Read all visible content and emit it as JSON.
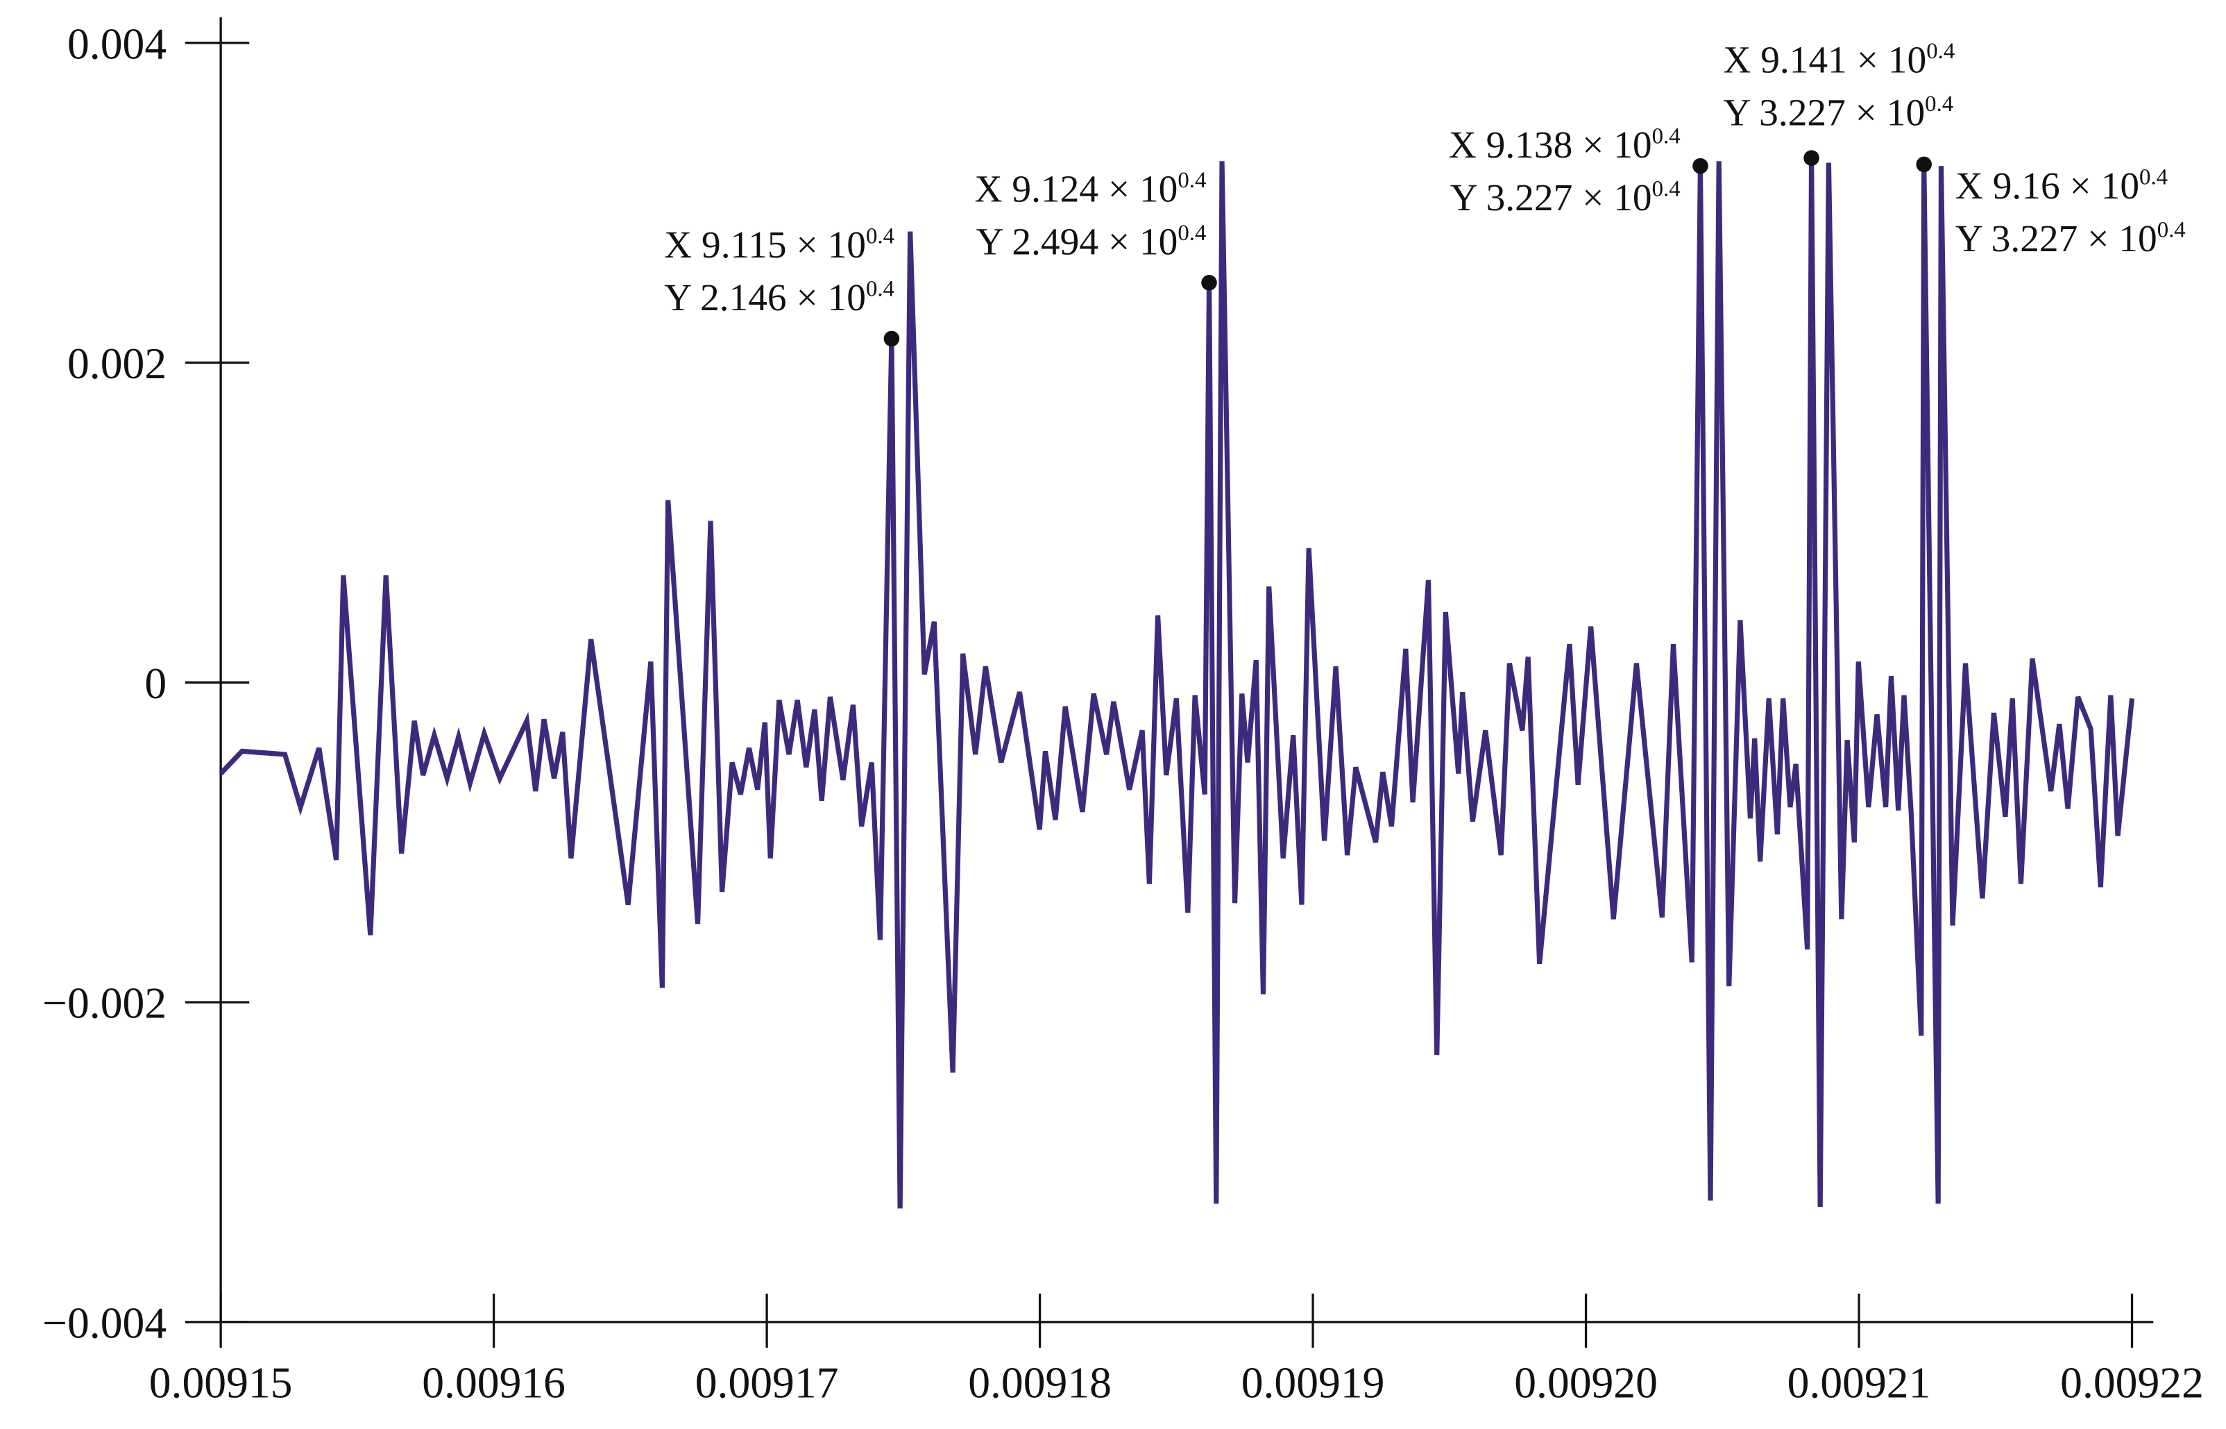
{
  "chart_data": {
    "type": "line",
    "color": "#3e2a7c",
    "xlim": [
      0.00915,
      0.00922
    ],
    "ylim": [
      -0.004,
      0.004
    ],
    "xticks": [
      0.00915,
      0.00916,
      0.00917,
      0.00918,
      0.00919,
      {
        "value": 0.0092,
        "label": "0.00920"
      },
      0.00921,
      0.00922
    ],
    "yticks": [
      {
        "value": -0.004,
        "label": "−0.004"
      },
      {
        "value": -0.002,
        "label": "−0.002"
      },
      0,
      0.002,
      0.004
    ],
    "x": [
      0.00915,
      0.00915078,
      0.00915235,
      0.00915292,
      0.0091536,
      0.00915423,
      0.00915449,
      0.00915548,
      0.00915605,
      0.00915662,
      0.00915709,
      0.00915741,
      0.00915782,
      0.00915829,
      0.00915871,
      0.00915913,
      0.00915965,
      0.00916022,
      0.00916121,
      0.00916153,
      0.00916184,
      0.00916221,
      0.00916252,
      0.00916283,
      0.00916356,
      0.00916492,
      0.00916575,
      0.00916617,
      0.00916638,
      0.00916747,
      0.00916794,
      0.00916836,
      0.00916873,
      0.00916904,
      0.00916935,
      0.00916966,
      0.00916993,
      0.00917013,
      0.00917045,
      0.00917081,
      0.00917112,
      0.00917144,
      0.00917175,
      0.00917201,
      0.00917232,
      0.00917279,
      0.00917316,
      0.00917347,
      0.00917384,
      0.00917415,
      0.00917457,
      0.00917488,
      0.00917525,
      0.00917577,
      0.00917613,
      0.00917681,
      0.00917718,
      0.00917764,
      0.00917801,
      0.00917858,
      0.00917926,
      0.00917999,
      0.0091802,
      0.00918057,
      0.00918093,
      0.00918156,
      0.00918197,
      0.00918244,
      0.0091827,
      0.00918328,
      0.00918375,
      0.00918401,
      0.00918432,
      0.00918463,
      0.009185,
      0.00918542,
      0.00918568,
      0.00918604,
      0.0091862,
      0.00918646,
      0.00918667,
      0.00918714,
      0.0091874,
      0.00918761,
      0.00918792,
      0.00918818,
      0.00918839,
      0.00918891,
      0.00918928,
      0.00918959,
      0.00918985,
      0.00919042,
      0.00919084,
      0.00919126,
      0.00919157,
      0.0091923,
      0.00919256,
      0.00919288,
      0.0091934,
      0.00919366,
      0.00919423,
      0.00919454,
      0.00919486,
      0.00919533,
      0.00919548,
      0.00919585,
      0.00919632,
      0.00919689,
      0.0091972,
      0.00919767,
      0.00919788,
      0.0091983,
      0.0091994,
      0.00919971,
      0.00920018,
      0.00920101,
      0.00920185,
      0.00920279,
      0.0092032,
      0.00920388,
      0.00920419,
      0.00920456,
      0.00920487,
      0.00920524,
      0.00920565,
      0.00920602,
      0.00920618,
      0.00920638,
      0.0092067,
      0.00920701,
      0.00920722,
      0.00920748,
      0.00920769,
      0.00920811,
      0.00920826,
      0.00920858,
      0.00920889,
      0.00920936,
      0.00920957,
      0.00920983,
      0.00920998,
      0.00921035,
      0.00921066,
      0.00921098,
      0.00921118,
      0.00921144,
      0.00921165,
      0.00921191,
      0.00921228,
      0.00921238,
      0.0092129,
      0.00921301,
      0.00921343,
      0.0092139,
      0.00921452,
      0.00921494,
      0.00921536,
      0.00921562,
      0.00921593,
      0.00921635,
      0.00921703,
      0.00921734,
      0.00921765,
      0.00921802,
      0.00921849,
      0.00921885,
      0.00921922,
      0.00921948,
      0.00922
    ],
    "values": [
      -0.00057,
      -0.00043,
      -0.00045,
      -0.00078,
      -0.00041,
      -0.00111,
      0.00067,
      -0.00158,
      0.00067,
      -0.00107,
      -0.00024,
      -0.00058,
      -0.00033,
      -0.0006,
      -0.00034,
      -0.00063,
      -0.00032,
      -0.0006,
      -0.00024,
      -0.00068,
      -0.00023,
      -0.0006,
      -0.00031,
      -0.0011,
      0.00027,
      -0.00139,
      0.00013,
      -0.00191,
      0.00114,
      -0.00151,
      0.00101,
      -0.00131,
      -0.0005,
      -0.0007,
      -0.00041,
      -0.00067,
      -0.00025,
      -0.0011,
      -0.00011,
      -0.00045,
      -0.00011,
      -0.00053,
      -0.00017,
      -0.00074,
      -9e-05,
      -0.00061,
      -0.00014,
      -0.0009,
      -0.0005,
      -0.00161,
      0.00215,
      -0.00329,
      0.00282,
      5e-05,
      0.00038,
      -0.00244,
      0.00018,
      -0.00045,
      0.0001,
      -0.0005,
      -6e-05,
      -0.00092,
      -0.00043,
      -0.00086,
      -0.00015,
      -0.00081,
      -7e-05,
      -0.00045,
      -0.00012,
      -0.00067,
      -0.0003,
      -0.00126,
      0.00042,
      -0.00058,
      -0.0001,
      -0.00144,
      -8e-05,
      -0.0007,
      0.0025,
      -0.00326,
      0.00326,
      -0.00138,
      -7e-05,
      -0.0005,
      0.00014,
      -0.00195,
      0.0006,
      -0.0011,
      -0.00033,
      -0.00139,
      0.00084,
      -0.00099,
      0.0001,
      -0.00108,
      -0.00053,
      -0.001,
      -0.00056,
      -0.0009,
      0.00021,
      -0.00075,
      0.00064,
      -0.00233,
      0.00044,
      -0.00057,
      -6e-05,
      -0.00087,
      -0.0003,
      -0.00108,
      0.00012,
      -0.0003,
      0.00016,
      -0.00176,
      0.00024,
      -0.00064,
      0.00035,
      -0.00148,
      0.00012,
      -0.00147,
      0.00024,
      -0.00175,
      0.00323,
      -0.00324,
      0.00326,
      -0.0019,
      0.00039,
      -0.00085,
      -0.00035,
      -0.00112,
      -0.0001,
      -0.00095,
      -0.0001,
      -0.00078,
      -0.00051,
      -0.00167,
      0.00328,
      -0.00328,
      0.00325,
      -0.00148,
      -0.00036,
      -0.001,
      0.00013,
      -0.00078,
      -0.0002,
      -0.00078,
      4e-05,
      -0.0008,
      -8e-05,
      -0.00081,
      -0.00221,
      0.00324,
      -0.00326,
      0.00323,
      -0.00152,
      0.00012,
      -0.00135,
      -0.00019,
      -0.00084,
      -0.0001,
      -0.00126,
      0.00015,
      -0.00068,
      -0.00026,
      -0.00079,
      -9e-05,
      -0.00029,
      -0.00128,
      -8e-05,
      -0.00096,
      -0.0001
    ],
    "annotations": [
      {
        "x": 0.00917457,
        "y": 0.00215,
        "lines": [
          {
            "text": "X 9.115 × 10",
            "sup": "0.4"
          },
          {
            "text": "Y 2.146 × 10",
            "sup": "0.4"
          }
        ]
      },
      {
        "x": 0.0091862,
        "y": 0.0025,
        "lines": [
          {
            "text": "X 9.124 × 10",
            "sup": "0.4"
          },
          {
            "text": "Y 2.494 × 10",
            "sup": "0.4"
          }
        ]
      },
      {
        "x": 0.00920419,
        "y": 0.00323,
        "lines": [
          {
            "text": "X 9.138 × 10",
            "sup": "0.4"
          },
          {
            "text": "Y 3.227 × 10",
            "sup": "0.4"
          }
        ]
      },
      {
        "x": 0.00920826,
        "y": 0.00328,
        "lines": [
          {
            "text": "X 9.141 × 10",
            "sup": "0.4"
          },
          {
            "text": "Y 3.227 × 10",
            "sup": "0.4"
          }
        ]
      },
      {
        "x": 0.00921238,
        "y": 0.00324,
        "lines": [
          {
            "text": "X 9.16 × 10",
            "sup": "0.4"
          },
          {
            "text": "Y 3.227 × 10",
            "sup": "0.4"
          }
        ]
      }
    ]
  }
}
